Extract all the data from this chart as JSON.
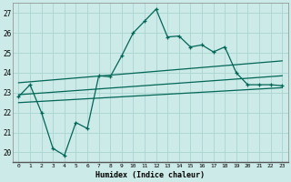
{
  "xlabel": "Humidex (Indice chaleur)",
  "bg_color": "#cceae8",
  "grid_color": "#aad4d0",
  "line_color": "#006655",
  "xlim": [
    -0.5,
    23.5
  ],
  "ylim": [
    19.5,
    27.5
  ],
  "yticks": [
    20,
    21,
    22,
    23,
    24,
    25,
    26,
    27
  ],
  "xticks": [
    0,
    1,
    2,
    3,
    4,
    5,
    6,
    7,
    8,
    9,
    10,
    11,
    12,
    13,
    14,
    15,
    16,
    17,
    18,
    19,
    20,
    21,
    22,
    23
  ],
  "main_line_x": [
    0,
    1,
    2,
    3,
    4,
    5,
    6,
    7,
    8,
    9,
    10,
    11,
    12,
    13,
    14,
    15,
    16,
    17,
    18,
    19,
    20,
    21,
    22,
    23
  ],
  "main_line_y": [
    22.8,
    23.4,
    22.0,
    20.2,
    19.85,
    21.5,
    21.2,
    23.85,
    23.8,
    24.85,
    26.0,
    26.6,
    27.2,
    25.8,
    25.85,
    25.3,
    25.4,
    25.05,
    25.3,
    24.0,
    23.4,
    23.4,
    23.4,
    23.35
  ],
  "line2_x": [
    0,
    23
  ],
  "line2_y": [
    23.5,
    24.6
  ],
  "line3_x": [
    0,
    23
  ],
  "line3_y": [
    22.9,
    23.85
  ],
  "line4_x": [
    0,
    23
  ],
  "line4_y": [
    22.5,
    23.25
  ]
}
